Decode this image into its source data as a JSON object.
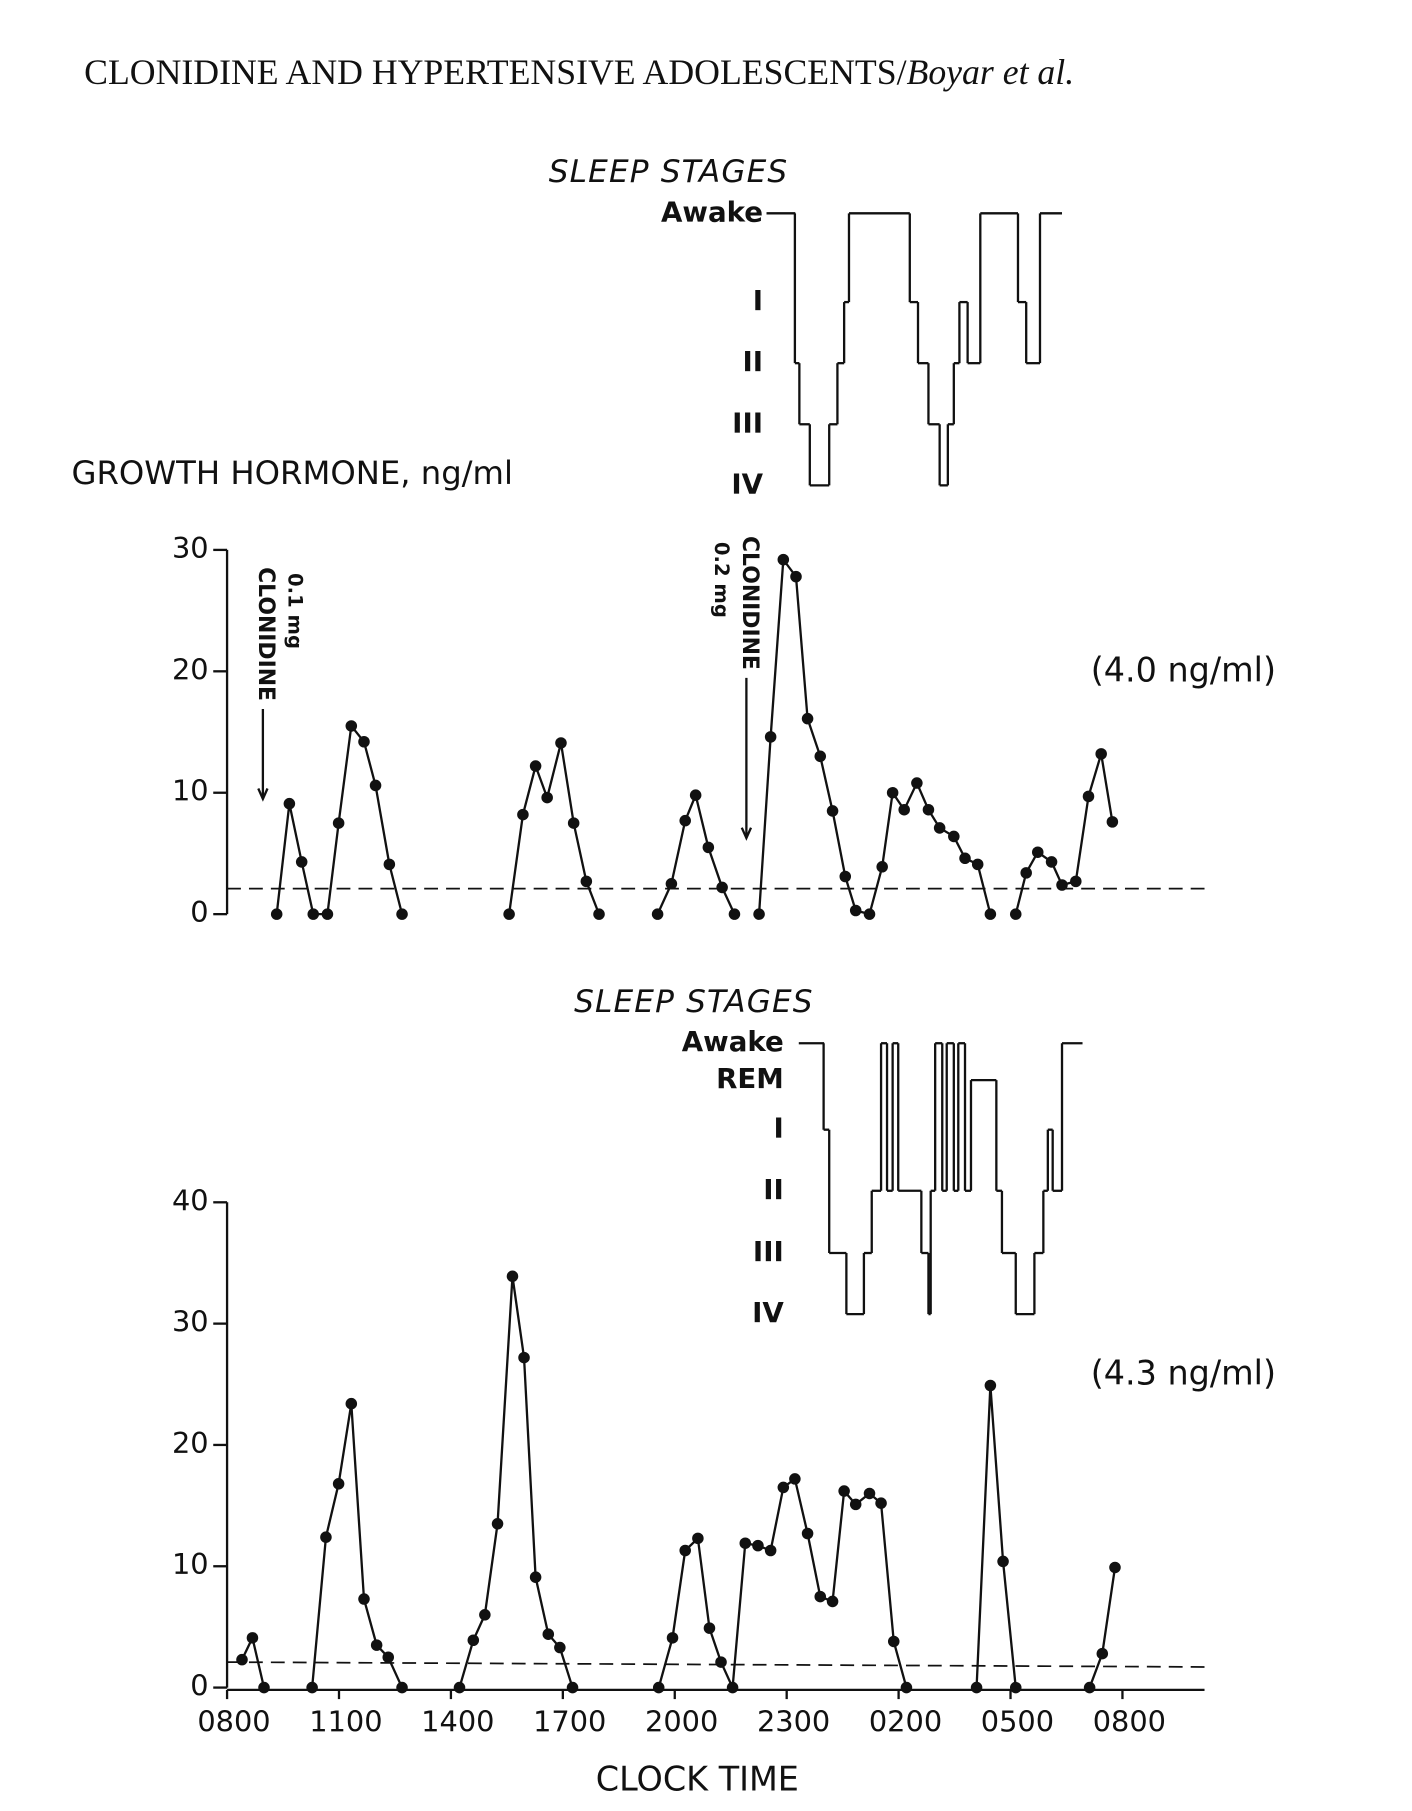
{
  "header": {
    "title": "CLONIDINE AND HYPERTENSIVE ADOLESCENTS/",
    "authors": "Boyar et al."
  },
  "chart_data": [
    {
      "type": "line",
      "y_label": "GROWTH HORMONE, ng/ml",
      "mean_label": "(4.0 ng/ml)",
      "xlim": [
        0,
        26.2
      ],
      "ylim": [
        0,
        30
      ],
      "yticks": [
        0,
        10,
        20,
        30
      ],
      "series": [
        {
          "color": "#111111",
          "x": [
            1.33,
            1.67,
            2.0,
            2.31,
            2.69,
            2.99,
            3.33,
            3.67,
            3.98,
            4.35,
            4.69,
            null,
            7.56,
            7.93,
            8.27,
            8.58,
            8.95,
            9.29,
            9.63,
            9.97,
            null,
            11.54,
            11.91,
            12.28,
            12.56,
            12.9,
            13.27,
            13.6,
            null,
            14.26,
            14.57,
            14.91,
            15.25,
            15.56,
            15.9,
            16.23,
            16.57,
            16.85,
            17.22,
            17.56,
            17.84,
            18.15,
            18.49,
            18.8,
            19.1,
            19.48,
            19.78,
            20.12,
            20.46,
            null,
            21.14,
            21.42,
            21.73,
            22.1,
            22.38,
            22.75,
            23.09,
            23.43,
            23.73
          ],
          "values": [
            0,
            9.1,
            4.3,
            0,
            0,
            7.5,
            15.5,
            14.2,
            10.6,
            4.1,
            0,
            null,
            0,
            8.2,
            12.2,
            9.6,
            14.1,
            7.5,
            2.7,
            0,
            null,
            0,
            2.5,
            7.7,
            9.8,
            5.5,
            2.2,
            0,
            null,
            0,
            14.6,
            29.2,
            27.8,
            16.1,
            13,
            8.5,
            3.1,
            0.3,
            0,
            3.9,
            10,
            8.6,
            10.8,
            8.6,
            7.1,
            6.4,
            4.6,
            4.1,
            0,
            null,
            0,
            3.4,
            5.1,
            4.3,
            2.4,
            2.7,
            9.7,
            13.2,
            7.6
          ]
        }
      ],
      "reference_line": {
        "x": [
          0,
          26.2
        ],
        "values": [
          2.1,
          2.1
        ]
      },
      "annotations": [
        {
          "text": "CLONIDINE",
          "dose": "0.1 mg",
          "x": 0.96
        },
        {
          "text": "CLONIDINE",
          "dose": "0.2 mg",
          "x": 13.92
        }
      ],
      "sleep_stages": {
        "title": "SLEEP STAGES",
        "levels": [
          "Awake",
          "I",
          "II",
          "III",
          "IV"
        ],
        "x": [
          15.22,
          15.34,
          15.62,
          16.14,
          16.36,
          16.54,
          16.67,
          18.3,
          18.52,
          18.8,
          19.1,
          19.32,
          19.48,
          19.63,
          19.85,
          20.19,
          21.2,
          21.42,
          21.79,
          22.38
        ],
        "stage": [
          2,
          3,
          4,
          3,
          2,
          1,
          0,
          1,
          2,
          3,
          4,
          3,
          2,
          1,
          2,
          0,
          1,
          2,
          0
        ]
      }
    },
    {
      "type": "line",
      "x_label": "CLOCK TIME",
      "mean_label": "(4.3 ng/ml)",
      "xlim": [
        0,
        26.2
      ],
      "ylim": [
        0,
        40
      ],
      "yticks": [
        0,
        10,
        20,
        30,
        40
      ],
      "xticks": [
        {
          "value": 0,
          "label": "0800"
        },
        {
          "value": 3,
          "label": "1100"
        },
        {
          "value": 6,
          "label": "1400"
        },
        {
          "value": 9,
          "label": "1700"
        },
        {
          "value": 12,
          "label": "2000"
        },
        {
          "value": 15,
          "label": "2300"
        },
        {
          "value": 18,
          "label": "0200"
        },
        {
          "value": 21,
          "label": "0500"
        },
        {
          "value": 24,
          "label": "0800"
        }
      ],
      "series": [
        {
          "color": "#111111",
          "x": [
            0.4,
            0.68,
            0.99,
            null,
            2.28,
            2.65,
            2.99,
            3.33,
            3.67,
            4.01,
            4.32,
            4.69,
            null,
            6.23,
            6.6,
            6.91,
            7.25,
            7.65,
            7.96,
            8.27,
            8.61,
            8.92,
            9.26,
            null,
            11.57,
            11.94,
            12.28,
            12.62,
            12.93,
            13.24,
            13.55,
            13.89,
            14.23,
            14.57,
            14.91,
            15.22,
            15.56,
            15.9,
            16.23,
            16.54,
            16.85,
            17.22,
            17.53,
            17.87,
            18.21,
            null,
            20.09,
            20.46,
            20.8,
            21.14,
            null,
            23.12,
            23.46,
            23.8
          ],
          "values": [
            2.3,
            4.1,
            0,
            null,
            0,
            12.4,
            16.8,
            23.4,
            7.3,
            3.5,
            2.5,
            0,
            null,
            0,
            3.9,
            6,
            13.5,
            33.9,
            27.2,
            9.1,
            4.4,
            3.3,
            0,
            null,
            0,
            4.1,
            11.3,
            12.3,
            4.9,
            2.1,
            0,
            11.9,
            11.7,
            11.3,
            16.5,
            17.2,
            12.7,
            7.5,
            7.1,
            16.2,
            15.1,
            16,
            15.2,
            3.8,
            0,
            null,
            0,
            24.9,
            10.4,
            0,
            null,
            0,
            2.8,
            9.9
          ]
        }
      ],
      "reference_line": {
        "x": [
          0,
          26.2
        ],
        "values": [
          2.1,
          1.7
        ]
      },
      "sleep_stages": {
        "title": "SLEEP STAGES",
        "levels": [
          "Awake",
          "REM",
          "I",
          "II",
          "III",
          "IV"
        ],
        "x": [
          15.99,
          16.14,
          16.6,
          17.07,
          17.28,
          17.53,
          17.69,
          17.84,
          17.99,
          18.61,
          18.8,
          18.86,
          18.98,
          19.17,
          19.29,
          19.48,
          19.6,
          19.78,
          19.94,
          20.62,
          20.77,
          21.14,
          21.64,
          21.88,
          22.0,
          22.13,
          22.38,
          22.93
        ],
        "stage": [
          2,
          4,
          5,
          4,
          3,
          0,
          3,
          0,
          3,
          4,
          5,
          3,
          0,
          3,
          0,
          3,
          0,
          3,
          1,
          3,
          4,
          5,
          4,
          3,
          2,
          3,
          0
        ]
      }
    }
  ]
}
